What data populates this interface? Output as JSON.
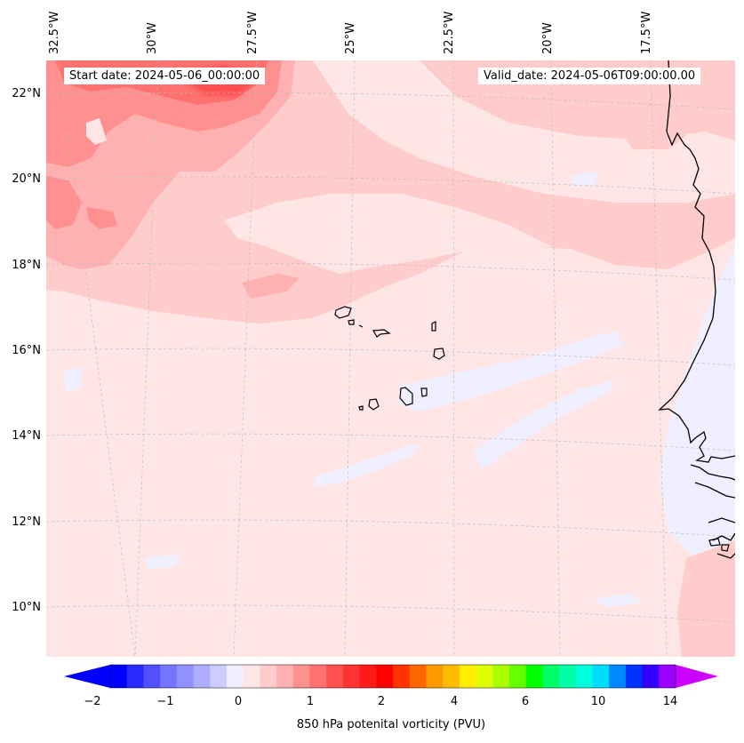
{
  "map": {
    "start_date": "Start date: 2024-05-06_00:00:00",
    "valid_date": "Valid_date: 2024-05-06T09:00:00.00",
    "lon_labels": [
      "32.5°W",
      "30°W",
      "27.5°W",
      "25°W",
      "22.5°W",
      "20°W",
      "17.5°W"
    ],
    "lat_labels": [
      "22°N",
      "20°N",
      "18°N",
      "16°N",
      "14°N",
      "12°N",
      "10°N"
    ],
    "extent": {
      "lon_min": -33.0,
      "lon_max": -15.5,
      "lat_min": 9.0,
      "lat_max": 22.8
    },
    "field": "850 hPa potential vorticity",
    "coastline_color": "#000000"
  },
  "colorbar": {
    "label": "850 hPa potenital vorticity (PVU)",
    "tick_labels": [
      "−2",
      "−1",
      "0",
      "1",
      "2",
      "4",
      "6",
      "10",
      "14"
    ],
    "colors": [
      "#0000ff",
      "#2a2aff",
      "#5050ff",
      "#7575ff",
      "#9090ff",
      "#aeaeff",
      "#ccccff",
      "#efefff",
      "#ffe6e6",
      "#ffcccc",
      "#ffb0b0",
      "#ff9090",
      "#ff7070",
      "#ff5050",
      "#ff3333",
      "#ff1a1a",
      "#ff0000",
      "#ff3300",
      "#ff6600",
      "#ff9900",
      "#ffbb00",
      "#ffee00",
      "#ddff00",
      "#aaff00",
      "#66ff00",
      "#00ff00",
      "#00ff66",
      "#00ffaa",
      "#00ffdd",
      "#00ddff",
      "#0088ff",
      "#0033ff",
      "#3300ff",
      "#9900ff"
    ],
    "min_color": "#0000ff",
    "max_color": "#cc00ff"
  }
}
